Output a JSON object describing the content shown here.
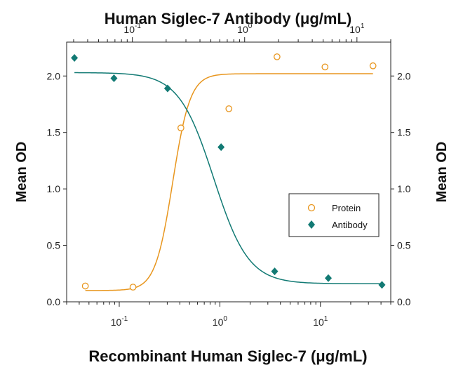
{
  "chart_data": {
    "type": "scatter",
    "title": "Human Siglec-7 Antibody (μg/mL)",
    "xlabel": "Recombinant Human Siglec-7 (μg/mL)",
    "ylabel": "Mean OD",
    "ylabel_right": "Mean OD",
    "y_ticks": [
      "0.0",
      "0.5",
      "1.0",
      "1.5",
      "2.0"
    ],
    "ylim": [
      0,
      2.3
    ],
    "bottom_axis": {
      "scale": "log",
      "range": [
        0.03,
        50
      ],
      "ticks": [
        {
          "value": 0.1,
          "base": "10",
          "exp": "-1"
        },
        {
          "value": 1,
          "base": "10",
          "exp": "0"
        },
        {
          "value": 10,
          "base": "10",
          "exp": "1"
        }
      ]
    },
    "top_axis": {
      "scale": "log",
      "range": [
        0.026,
        20
      ],
      "ticks": [
        {
          "value": 0.1,
          "base": "10",
          "exp": "-1"
        },
        {
          "value": 1,
          "base": "10",
          "exp": "0"
        },
        {
          "value": 10,
          "base": "10",
          "exp": "1"
        }
      ]
    },
    "legend": {
      "position": "right",
      "entries": [
        "Protein",
        "Antibody"
      ]
    },
    "series": [
      {
        "name": "Protein",
        "axis": "bottom",
        "marker": "open-circle",
        "color": "#e8961e",
        "x": [
          0.046,
          0.137,
          0.41,
          1.23,
          3.7,
          11.1,
          33.3
        ],
        "y": [
          0.14,
          0.13,
          1.54,
          1.71,
          2.17,
          2.08,
          2.09
        ],
        "fit": {
          "bottom": 0.1,
          "top": 2.02,
          "ec50": 0.34,
          "hill": 5
        }
      },
      {
        "name": "Antibody",
        "axis": "top",
        "marker": "filled-diamond",
        "color": "#127a74",
        "x": [
          0.0305,
          0.0686,
          0.206,
          0.617,
          1.85,
          5.56,
          16.7
        ],
        "y": [
          2.16,
          1.98,
          1.89,
          1.37,
          0.27,
          0.21,
          0.15
        ],
        "fit": {
          "bottom": 0.16,
          "top": 2.03,
          "ec50": 0.53,
          "hill": 2.8
        }
      }
    ]
  }
}
